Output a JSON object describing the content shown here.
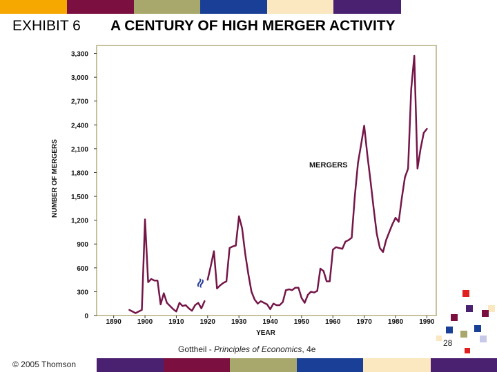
{
  "slide": {
    "exhibit_label": "EXHIBIT 6",
    "title": "A CENTURY OF HIGH MERGER ACTIVITY",
    "credit_author": "Gottheil - ",
    "credit_book": "Principles of Economics",
    "credit_edition": ", 4e",
    "copyright": "© 2005 Thomson",
    "page_number": "28"
  },
  "theme": {
    "band_colors": [
      "#f6a800",
      "#7b1040",
      "#a8a86c",
      "#1a3f97",
      "#fbe8c0",
      "#4a2170"
    ],
    "line_color": "#741648",
    "plot_bg": "#ffffff",
    "plot_border": "#c8c29c",
    "grid_color": "#c8c29c"
  },
  "chart_data": {
    "type": "line",
    "ylabel": "NUMBER OF MERGERS",
    "xlabel": "YEAR",
    "series_label": "MERGERS",
    "break_marker": "≈",
    "x_range": [
      1885,
      1993
    ],
    "y_range": [
      0,
      3400
    ],
    "x_ticks": [
      1890,
      1900,
      1910,
      1920,
      1930,
      1940,
      1950,
      1960,
      1970,
      1980,
      1990
    ],
    "x_tick_labels": [
      "1890",
      "1900",
      "1910",
      "1920",
      "1930",
      "1940",
      "1950",
      "1960",
      "1970",
      "1980",
      "1990"
    ],
    "y_ticks": [
      0,
      300,
      600,
      900,
      1200,
      1500,
      1800,
      2100,
      2400,
      2700,
      3000,
      3300
    ],
    "y_tick_labels": [
      "0",
      "300",
      "600",
      "900",
      "1,200",
      "1,500",
      "1,800",
      "2,100",
      "2,400",
      "2,700",
      "3,000",
      "3,300"
    ],
    "series": [
      {
        "x": [
          1895,
          1897,
          1899,
          1900,
          1901,
          1902,
          1903,
          1904,
          1905,
          1906,
          1907,
          1908,
          1909,
          1910,
          1911,
          1912,
          1913,
          1914,
          1915,
          1916,
          1917,
          1918,
          1919
        ],
        "y": [
          70,
          30,
          70,
          1210,
          420,
          460,
          440,
          440,
          140,
          280,
          160,
          120,
          80,
          50,
          160,
          120,
          130,
          90,
          60,
          130,
          160,
          90,
          180
        ]
      },
      {
        "x": [
          1920,
          1921,
          1922,
          1923,
          1924,
          1925,
          1926,
          1927,
          1928,
          1929,
          1930,
          1931,
          1932,
          1933,
          1934,
          1935,
          1936,
          1937,
          1938,
          1939,
          1940,
          1941,
          1942,
          1943,
          1944,
          1945,
          1946,
          1947,
          1948,
          1949,
          1950,
          1951,
          1952,
          1953,
          1954,
          1955,
          1956,
          1957,
          1958,
          1959,
          1960,
          1961,
          1962,
          1963,
          1964,
          1965,
          1966,
          1967,
          1968,
          1969,
          1970,
          1971,
          1972,
          1973,
          1974,
          1975,
          1976,
          1977,
          1978,
          1979,
          1980,
          1981,
          1982,
          1983,
          1984,
          1985,
          1986,
          1987,
          1988,
          1989,
          1990
        ],
        "y": [
          450,
          620,
          810,
          340,
          380,
          410,
          430,
          850,
          870,
          880,
          1250,
          1100,
          780,
          520,
          300,
          200,
          150,
          180,
          160,
          140,
          80,
          150,
          130,
          130,
          170,
          320,
          330,
          320,
          350,
          350,
          220,
          160,
          260,
          300,
          290,
          310,
          590,
          560,
          430,
          430,
          830,
          860,
          850,
          840,
          930,
          950,
          980,
          1500,
          1920,
          2150,
          2390,
          2020,
          1700,
          1350,
          1030,
          850,
          800,
          950,
          1050,
          1150,
          1230,
          1180,
          1480,
          1740,
          1850,
          2850,
          3270,
          1850,
          2100,
          2300,
          2350
        ]
      }
    ]
  }
}
